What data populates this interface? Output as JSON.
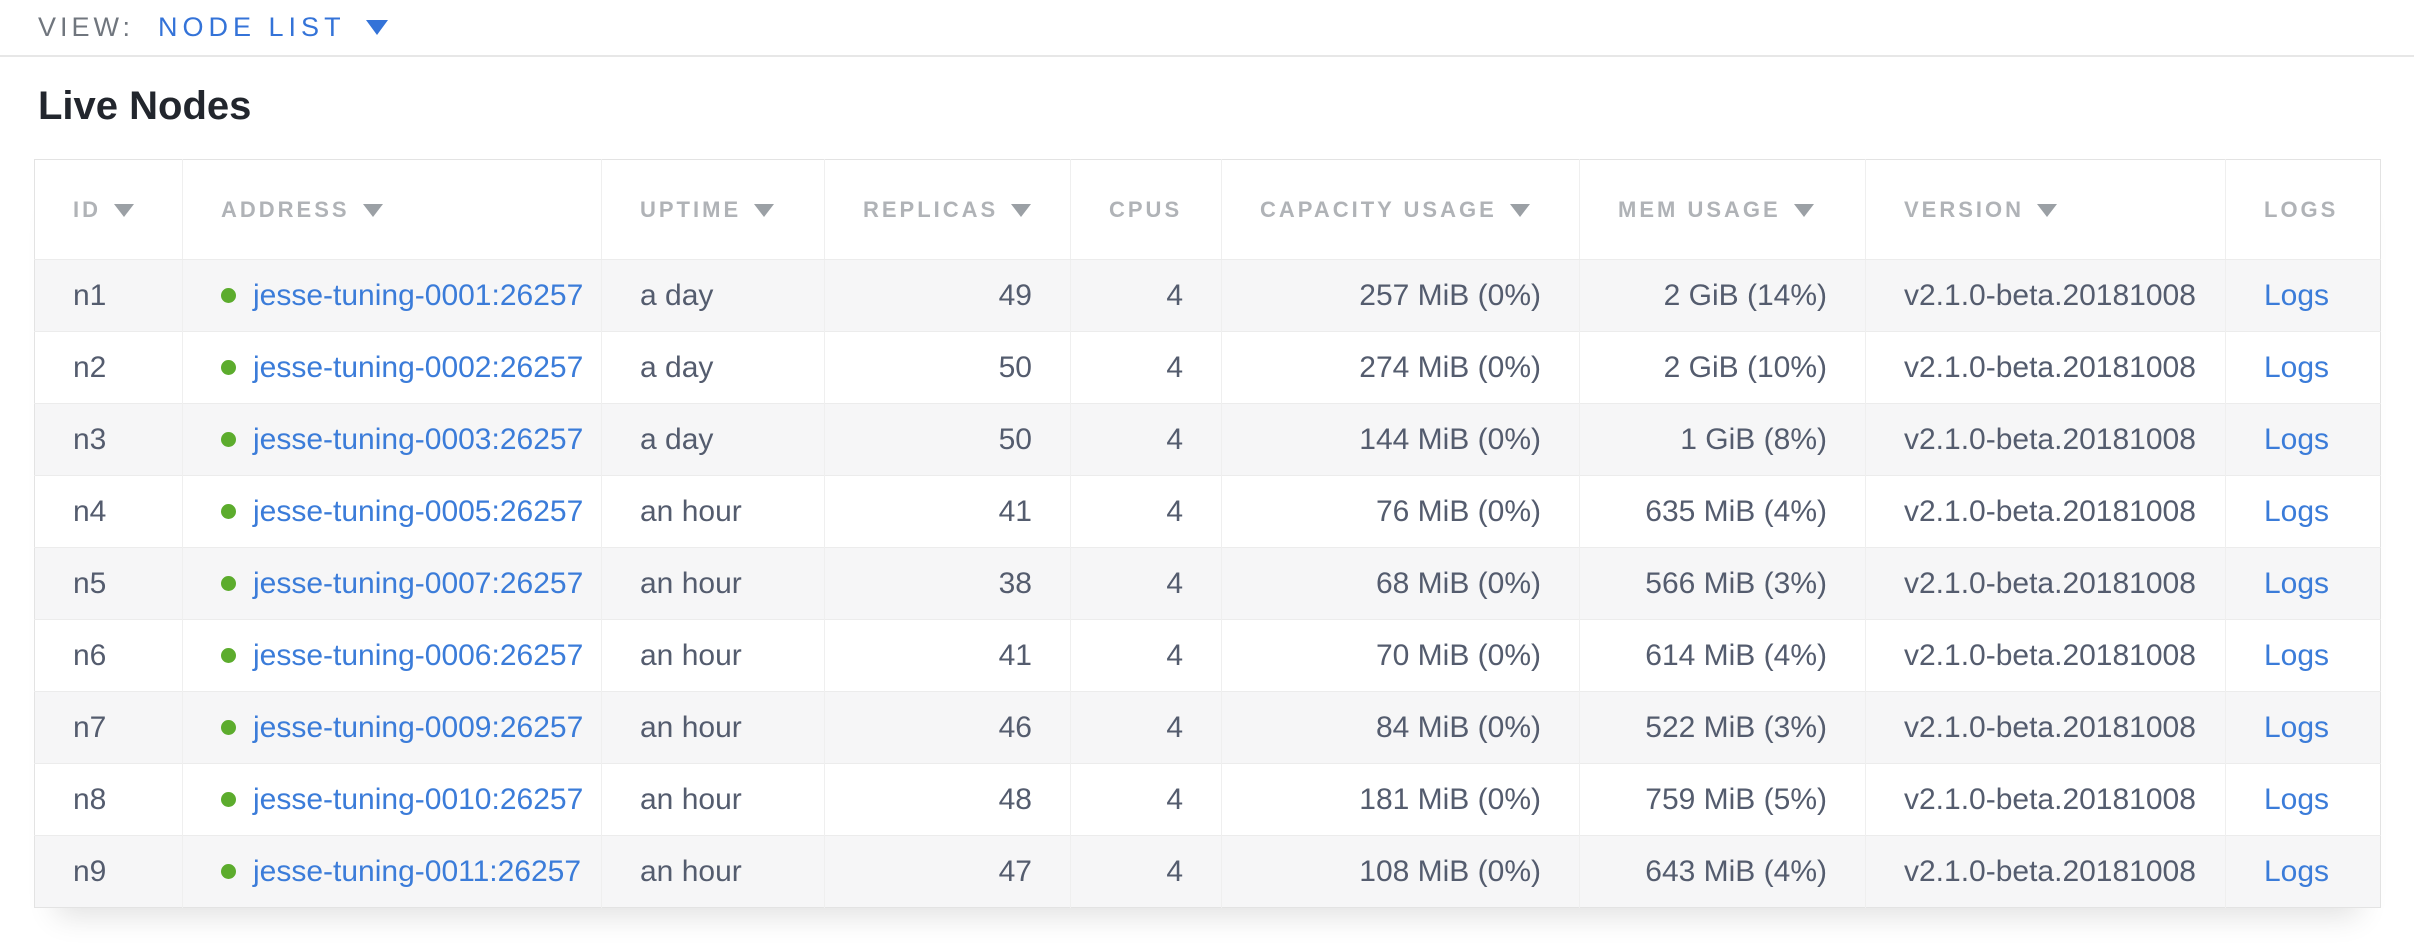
{
  "view_bar": {
    "label": "VIEW:",
    "selected": "NODE LIST"
  },
  "page": {
    "title": "Live Nodes"
  },
  "colors": {
    "link_blue": "#3b7cd9",
    "view_selector_blue": "#3473d8",
    "live_status_green": "#5cac2d",
    "header_gray": "#b0b3b7",
    "cell_text": "#545c6e"
  },
  "table": {
    "columns": [
      {
        "key": "id",
        "label": "ID",
        "sortable": true,
        "align": "left"
      },
      {
        "key": "address",
        "label": "ADDRESS",
        "sortable": true,
        "align": "left"
      },
      {
        "key": "uptime",
        "label": "UPTIME",
        "sortable": true,
        "align": "left"
      },
      {
        "key": "replicas",
        "label": "REPLICAS",
        "sortable": true,
        "align": "right"
      },
      {
        "key": "cpus",
        "label": "CPUS",
        "sortable": false,
        "align": "right"
      },
      {
        "key": "capacity",
        "label": "CAPACITY USAGE",
        "sortable": true,
        "align": "right"
      },
      {
        "key": "mem",
        "label": "MEM USAGE",
        "sortable": true,
        "align": "right"
      },
      {
        "key": "version",
        "label": "VERSION",
        "sortable": true,
        "align": "left"
      },
      {
        "key": "logs",
        "label": "LOGS",
        "sortable": false,
        "align": "left"
      }
    ],
    "rows": [
      {
        "id": "n1",
        "status": "live",
        "address": "jesse-tuning-0001:26257",
        "uptime": "a day",
        "replicas": "49",
        "cpus": "4",
        "capacity": "257 MiB (0%)",
        "mem": "2 GiB (14%)",
        "version": "v2.1.0-beta.20181008",
        "logs": "Logs"
      },
      {
        "id": "n2",
        "status": "live",
        "address": "jesse-tuning-0002:26257",
        "uptime": "a day",
        "replicas": "50",
        "cpus": "4",
        "capacity": "274 MiB (0%)",
        "mem": "2 GiB (10%)",
        "version": "v2.1.0-beta.20181008",
        "logs": "Logs"
      },
      {
        "id": "n3",
        "status": "live",
        "address": "jesse-tuning-0003:26257",
        "uptime": "a day",
        "replicas": "50",
        "cpus": "4",
        "capacity": "144 MiB (0%)",
        "mem": "1 GiB (8%)",
        "version": "v2.1.0-beta.20181008",
        "logs": "Logs"
      },
      {
        "id": "n4",
        "status": "live",
        "address": "jesse-tuning-0005:26257",
        "uptime": "an hour",
        "replicas": "41",
        "cpus": "4",
        "capacity": "76 MiB (0%)",
        "mem": "635 MiB (4%)",
        "version": "v2.1.0-beta.20181008",
        "logs": "Logs"
      },
      {
        "id": "n5",
        "status": "live",
        "address": "jesse-tuning-0007:26257",
        "uptime": "an hour",
        "replicas": "38",
        "cpus": "4",
        "capacity": "68 MiB (0%)",
        "mem": "566 MiB (3%)",
        "version": "v2.1.0-beta.20181008",
        "logs": "Logs"
      },
      {
        "id": "n6",
        "status": "live",
        "address": "jesse-tuning-0006:26257",
        "uptime": "an hour",
        "replicas": "41",
        "cpus": "4",
        "capacity": "70 MiB (0%)",
        "mem": "614 MiB (4%)",
        "version": "v2.1.0-beta.20181008",
        "logs": "Logs"
      },
      {
        "id": "n7",
        "status": "live",
        "address": "jesse-tuning-0009:26257",
        "uptime": "an hour",
        "replicas": "46",
        "cpus": "4",
        "capacity": "84 MiB (0%)",
        "mem": "522 MiB (3%)",
        "version": "v2.1.0-beta.20181008",
        "logs": "Logs"
      },
      {
        "id": "n8",
        "status": "live",
        "address": "jesse-tuning-0010:26257",
        "uptime": "an hour",
        "replicas": "48",
        "cpus": "4",
        "capacity": "181 MiB (0%)",
        "mem": "759 MiB (5%)",
        "version": "v2.1.0-beta.20181008",
        "logs": "Logs"
      },
      {
        "id": "n9",
        "status": "live",
        "address": "jesse-tuning-0011:26257",
        "uptime": "an hour",
        "replicas": "47",
        "cpus": "4",
        "capacity": "108 MiB (0%)",
        "mem": "643 MiB (4%)",
        "version": "v2.1.0-beta.20181008",
        "logs": "Logs"
      }
    ]
  }
}
